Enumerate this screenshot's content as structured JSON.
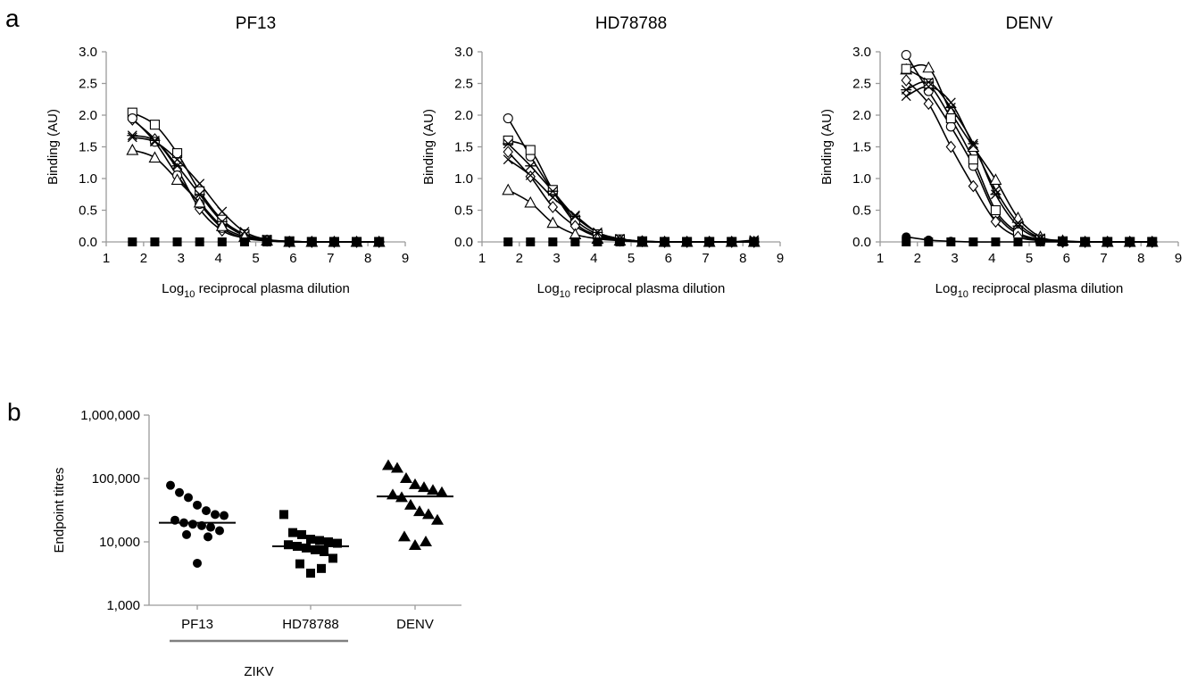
{
  "panel_a_letter": "a",
  "panel_b_letter": "b",
  "chart_data": [
    {
      "type": "line",
      "title": "PF13",
      "ylabel": "Binding (AU)",
      "xlabel": "Log10 reciprocal plasma dilution",
      "xlim": [
        1,
        9
      ],
      "ylim": [
        0,
        3
      ],
      "x_ticks": [
        "1",
        "2",
        "3",
        "4",
        "5",
        "6",
        "7",
        "8",
        "9"
      ],
      "y_ticks": [
        "0.0",
        "0.5",
        "1.0",
        "1.5",
        "2.0",
        "2.5",
        "3.0"
      ],
      "x": [
        1.7,
        2.3,
        2.9,
        3.5,
        4.1,
        4.7,
        5.3,
        5.9,
        6.5,
        7.1,
        7.7,
        8.3
      ],
      "series": [
        {
          "marker": "square",
          "values": [
            2.04,
            1.85,
            1.4,
            0.8,
            0.35,
            0.12,
            0.03,
            0.01,
            0.0,
            0.0,
            0.0,
            0.0
          ]
        },
        {
          "marker": "diamond",
          "values": [
            1.93,
            1.62,
            1.15,
            0.52,
            0.18,
            0.06,
            0.02,
            0.0,
            0.0,
            0.0,
            0.0,
            0.0
          ]
        },
        {
          "marker": "circle-open",
          "values": [
            1.95,
            1.58,
            1.05,
            0.6,
            0.22,
            0.06,
            0.02,
            0.0,
            0.0,
            0.0,
            0.0,
            0.0
          ]
        },
        {
          "marker": "star",
          "values": [
            1.68,
            1.6,
            1.2,
            0.75,
            0.32,
            0.1,
            0.03,
            0.01,
            0.0,
            0.0,
            0.0,
            0.0
          ]
        },
        {
          "marker": "x",
          "values": [
            1.65,
            1.58,
            1.3,
            0.92,
            0.48,
            0.16,
            0.04,
            0.01,
            0.0,
            0.0,
            0.0,
            0.0
          ]
        },
        {
          "marker": "triangle",
          "values": [
            1.45,
            1.33,
            0.98,
            0.62,
            0.25,
            0.08,
            0.02,
            0.0,
            0.0,
            0.0,
            0.0,
            0.0
          ]
        },
        {
          "marker": "circle-filled",
          "values": [
            0.0,
            0.0,
            0.0,
            0.0,
            0.0,
            0.0,
            0.0,
            0.0,
            0.0,
            0.0,
            0.0,
            0.0
          ]
        },
        {
          "marker": "square-filled",
          "values": [
            0.0,
            0.0,
            0.0,
            0.0,
            0.0,
            0.0,
            0.0,
            0.0,
            0.0,
            0.0,
            0.0,
            0.0
          ]
        }
      ]
    },
    {
      "type": "line",
      "title": "HD78788",
      "ylabel": "Binding (AU)",
      "xlabel": "Log10 reciprocal plasma dilution",
      "xlim": [
        1,
        9
      ],
      "ylim": [
        0,
        3
      ],
      "x_ticks": [
        "1",
        "2",
        "3",
        "4",
        "5",
        "6",
        "7",
        "8",
        "9"
      ],
      "y_ticks": [
        "0.0",
        "0.5",
        "1.0",
        "1.5",
        "2.0",
        "2.5",
        "3.0"
      ],
      "x": [
        1.7,
        2.3,
        2.9,
        3.5,
        4.1,
        4.7,
        5.3,
        5.9,
        6.5,
        7.1,
        7.7,
        8.3
      ],
      "series": [
        {
          "marker": "circle-open",
          "values": [
            1.95,
            1.35,
            0.8,
            0.3,
            0.1,
            0.03,
            0.01,
            0.0,
            0.0,
            0.0,
            0.0,
            0.0
          ]
        },
        {
          "marker": "square",
          "values": [
            1.6,
            1.45,
            0.82,
            0.35,
            0.12,
            0.04,
            0.01,
            0.0,
            0.0,
            0.0,
            0.0,
            0.0
          ]
        },
        {
          "marker": "star",
          "values": [
            1.55,
            1.2,
            0.8,
            0.4,
            0.15,
            0.05,
            0.01,
            0.0,
            0.0,
            0.0,
            0.0,
            0.0
          ]
        },
        {
          "marker": "diamond",
          "values": [
            1.42,
            1.03,
            0.55,
            0.25,
            0.08,
            0.02,
            0.01,
            0.0,
            0.0,
            0.0,
            0.0,
            0.0
          ]
        },
        {
          "marker": "x",
          "values": [
            1.3,
            1.05,
            0.7,
            0.42,
            0.15,
            0.05,
            0.01,
            0.0,
            0.0,
            0.0,
            0.0,
            0.03
          ]
        },
        {
          "marker": "triangle",
          "values": [
            0.82,
            0.62,
            0.3,
            0.12,
            0.05,
            0.02,
            0.0,
            0.0,
            0.0,
            0.0,
            0.0,
            0.0
          ]
        },
        {
          "marker": "circle-filled",
          "values": [
            0.0,
            0.0,
            0.0,
            0.0,
            0.0,
            0.0,
            0.0,
            0.0,
            0.0,
            0.0,
            0.0,
            0.0
          ]
        },
        {
          "marker": "square-filled",
          "values": [
            0.0,
            0.0,
            0.0,
            0.0,
            0.0,
            0.0,
            0.0,
            0.0,
            0.0,
            0.0,
            0.0,
            0.0
          ]
        }
      ]
    },
    {
      "type": "line",
      "title": "DENV",
      "ylabel": "Binding (AU)",
      "xlabel": "Log10 reciprocal plasma dilution",
      "xlim": [
        1,
        9
      ],
      "ylim": [
        0,
        3
      ],
      "x_ticks": [
        "1",
        "2",
        "3",
        "4",
        "5",
        "6",
        "7",
        "8",
        "9"
      ],
      "y_ticks": [
        "0.0",
        "0.5",
        "1.0",
        "1.5",
        "2.0",
        "2.5",
        "3.0"
      ],
      "x": [
        1.7,
        2.3,
        2.9,
        3.5,
        4.1,
        4.7,
        5.3,
        5.9,
        6.5,
        7.1,
        7.7,
        8.3
      ],
      "series": [
        {
          "marker": "circle-open",
          "values": [
            2.95,
            2.38,
            1.82,
            1.2,
            0.45,
            0.12,
            0.03,
            0.01,
            0.0,
            0.0,
            0.0,
            0.0
          ]
        },
        {
          "marker": "triangle",
          "values": [
            2.72,
            2.75,
            2.05,
            1.5,
            0.98,
            0.38,
            0.08,
            0.02,
            0.0,
            0.0,
            0.0,
            0.0
          ]
        },
        {
          "marker": "square",
          "values": [
            2.73,
            2.5,
            1.95,
            1.3,
            0.5,
            0.15,
            0.04,
            0.01,
            0.0,
            0.0,
            0.0,
            0.0
          ]
        },
        {
          "marker": "diamond",
          "values": [
            2.55,
            2.18,
            1.5,
            0.88,
            0.32,
            0.08,
            0.02,
            0.0,
            0.0,
            0.0,
            0.0,
            0.0
          ]
        },
        {
          "marker": "star",
          "values": [
            2.4,
            2.52,
            2.12,
            1.55,
            0.75,
            0.25,
            0.05,
            0.01,
            0.0,
            0.0,
            0.0,
            0.0
          ]
        },
        {
          "marker": "x",
          "values": [
            2.3,
            2.45,
            2.2,
            1.52,
            0.82,
            0.3,
            0.06,
            0.01,
            0.0,
            0.0,
            0.0,
            0.0
          ]
        },
        {
          "marker": "circle-filled",
          "values": [
            0.08,
            0.03,
            0.01,
            0.0,
            0.0,
            0.0,
            0.0,
            0.0,
            0.0,
            0.0,
            0.0,
            0.0
          ]
        },
        {
          "marker": "square-filled",
          "values": [
            0.0,
            0.0,
            0.0,
            0.0,
            0.0,
            0.0,
            0.0,
            0.0,
            0.0,
            0.0,
            0.0,
            0.0
          ]
        }
      ]
    },
    {
      "type": "scatter",
      "ylabel": "Endpoint titres",
      "yscale": "log",
      "ylim": [
        1000,
        1000000
      ],
      "y_ticks": [
        "1,000",
        "10,000",
        "100,000",
        "1,000,000"
      ],
      "categories": [
        "PF13",
        "HD78788",
        "DENV"
      ],
      "group_label": "ZIKV",
      "group_members": [
        "PF13",
        "HD78788"
      ],
      "series": [
        {
          "category": "PF13",
          "marker": "circle-filled",
          "median": 20000,
          "values": [
            78000,
            60000,
            50000,
            38000,
            31000,
            27000,
            26000,
            22000,
            20000,
            19000,
            18000,
            17000,
            15000,
            13000,
            12000,
            4600
          ]
        },
        {
          "category": "HD78788",
          "marker": "square-filled",
          "median": 8500,
          "values": [
            27000,
            14000,
            13000,
            11000,
            10500,
            10000,
            9500,
            9000,
            8500,
            8000,
            7500,
            7000,
            5500,
            4500,
            3800,
            3200
          ]
        },
        {
          "category": "DENV",
          "marker": "triangle-filled",
          "median": 52000,
          "values": [
            160000,
            145000,
            100000,
            80000,
            72000,
            65000,
            60000,
            55000,
            50000,
            38000,
            30000,
            27000,
            22000,
            12000,
            10000,
            8800
          ]
        }
      ]
    }
  ]
}
